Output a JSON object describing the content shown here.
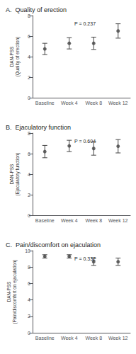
{
  "chart_data": [
    {
      "type": "scatter",
      "title": "A.  Quality of erection",
      "ylabel": "DAN-PSS\n(Quality of erection)",
      "annotations": [
        "P = 0.237"
      ],
      "categories": [
        "Baseline",
        "Week 4",
        "Week 8",
        "Week 12"
      ],
      "values": [
        4.75,
        5.3,
        5.3,
        6.5
      ],
      "yerr": [
        0.55,
        0.55,
        0.6,
        0.7
      ],
      "color": "#444444",
      "marker": "circle",
      "ylim": [
        0,
        8
      ],
      "yticks": [
        0,
        2,
        4,
        6,
        8
      ],
      "grid": false
    },
    {
      "type": "scatter",
      "title": "B.  Ejaculatory function",
      "ylabel": "DAN-PSS\n(Ejaculatory function)",
      "annotations": [
        "P = 0.604"
      ],
      "categories": [
        "Baseline",
        "Week 4",
        "Week 8",
        "Week 12"
      ],
      "values": [
        6.2,
        6.75,
        6.5,
        6.72
      ],
      "yerr": [
        0.6,
        0.55,
        0.65,
        0.65
      ],
      "color": "#444444",
      "marker": "circle",
      "ylim": [
        0,
        8
      ],
      "yticks": [
        0,
        2,
        4,
        6,
        8
      ],
      "grid": false
    },
    {
      "type": "scatter",
      "title": "C.  Pain/discomfort on ejaculation",
      "ylabel": "DAN-PSS\n(Pain/discomfort on ejaculation)",
      "annotations": [
        "P = 0.332"
      ],
      "categories": [
        "Baseline",
        "Week 4",
        "Week 8",
        "Week 12"
      ],
      "values": [
        9.3,
        9.3,
        8.65,
        8.65
      ],
      "yerr": [
        0.2,
        0.2,
        0.45,
        0.45
      ],
      "color": "#444444",
      "marker": "circle",
      "ylim": [
        0,
        10
      ],
      "yticks": [
        0,
        2,
        4,
        6,
        8,
        10
      ],
      "grid": false
    }
  ]
}
